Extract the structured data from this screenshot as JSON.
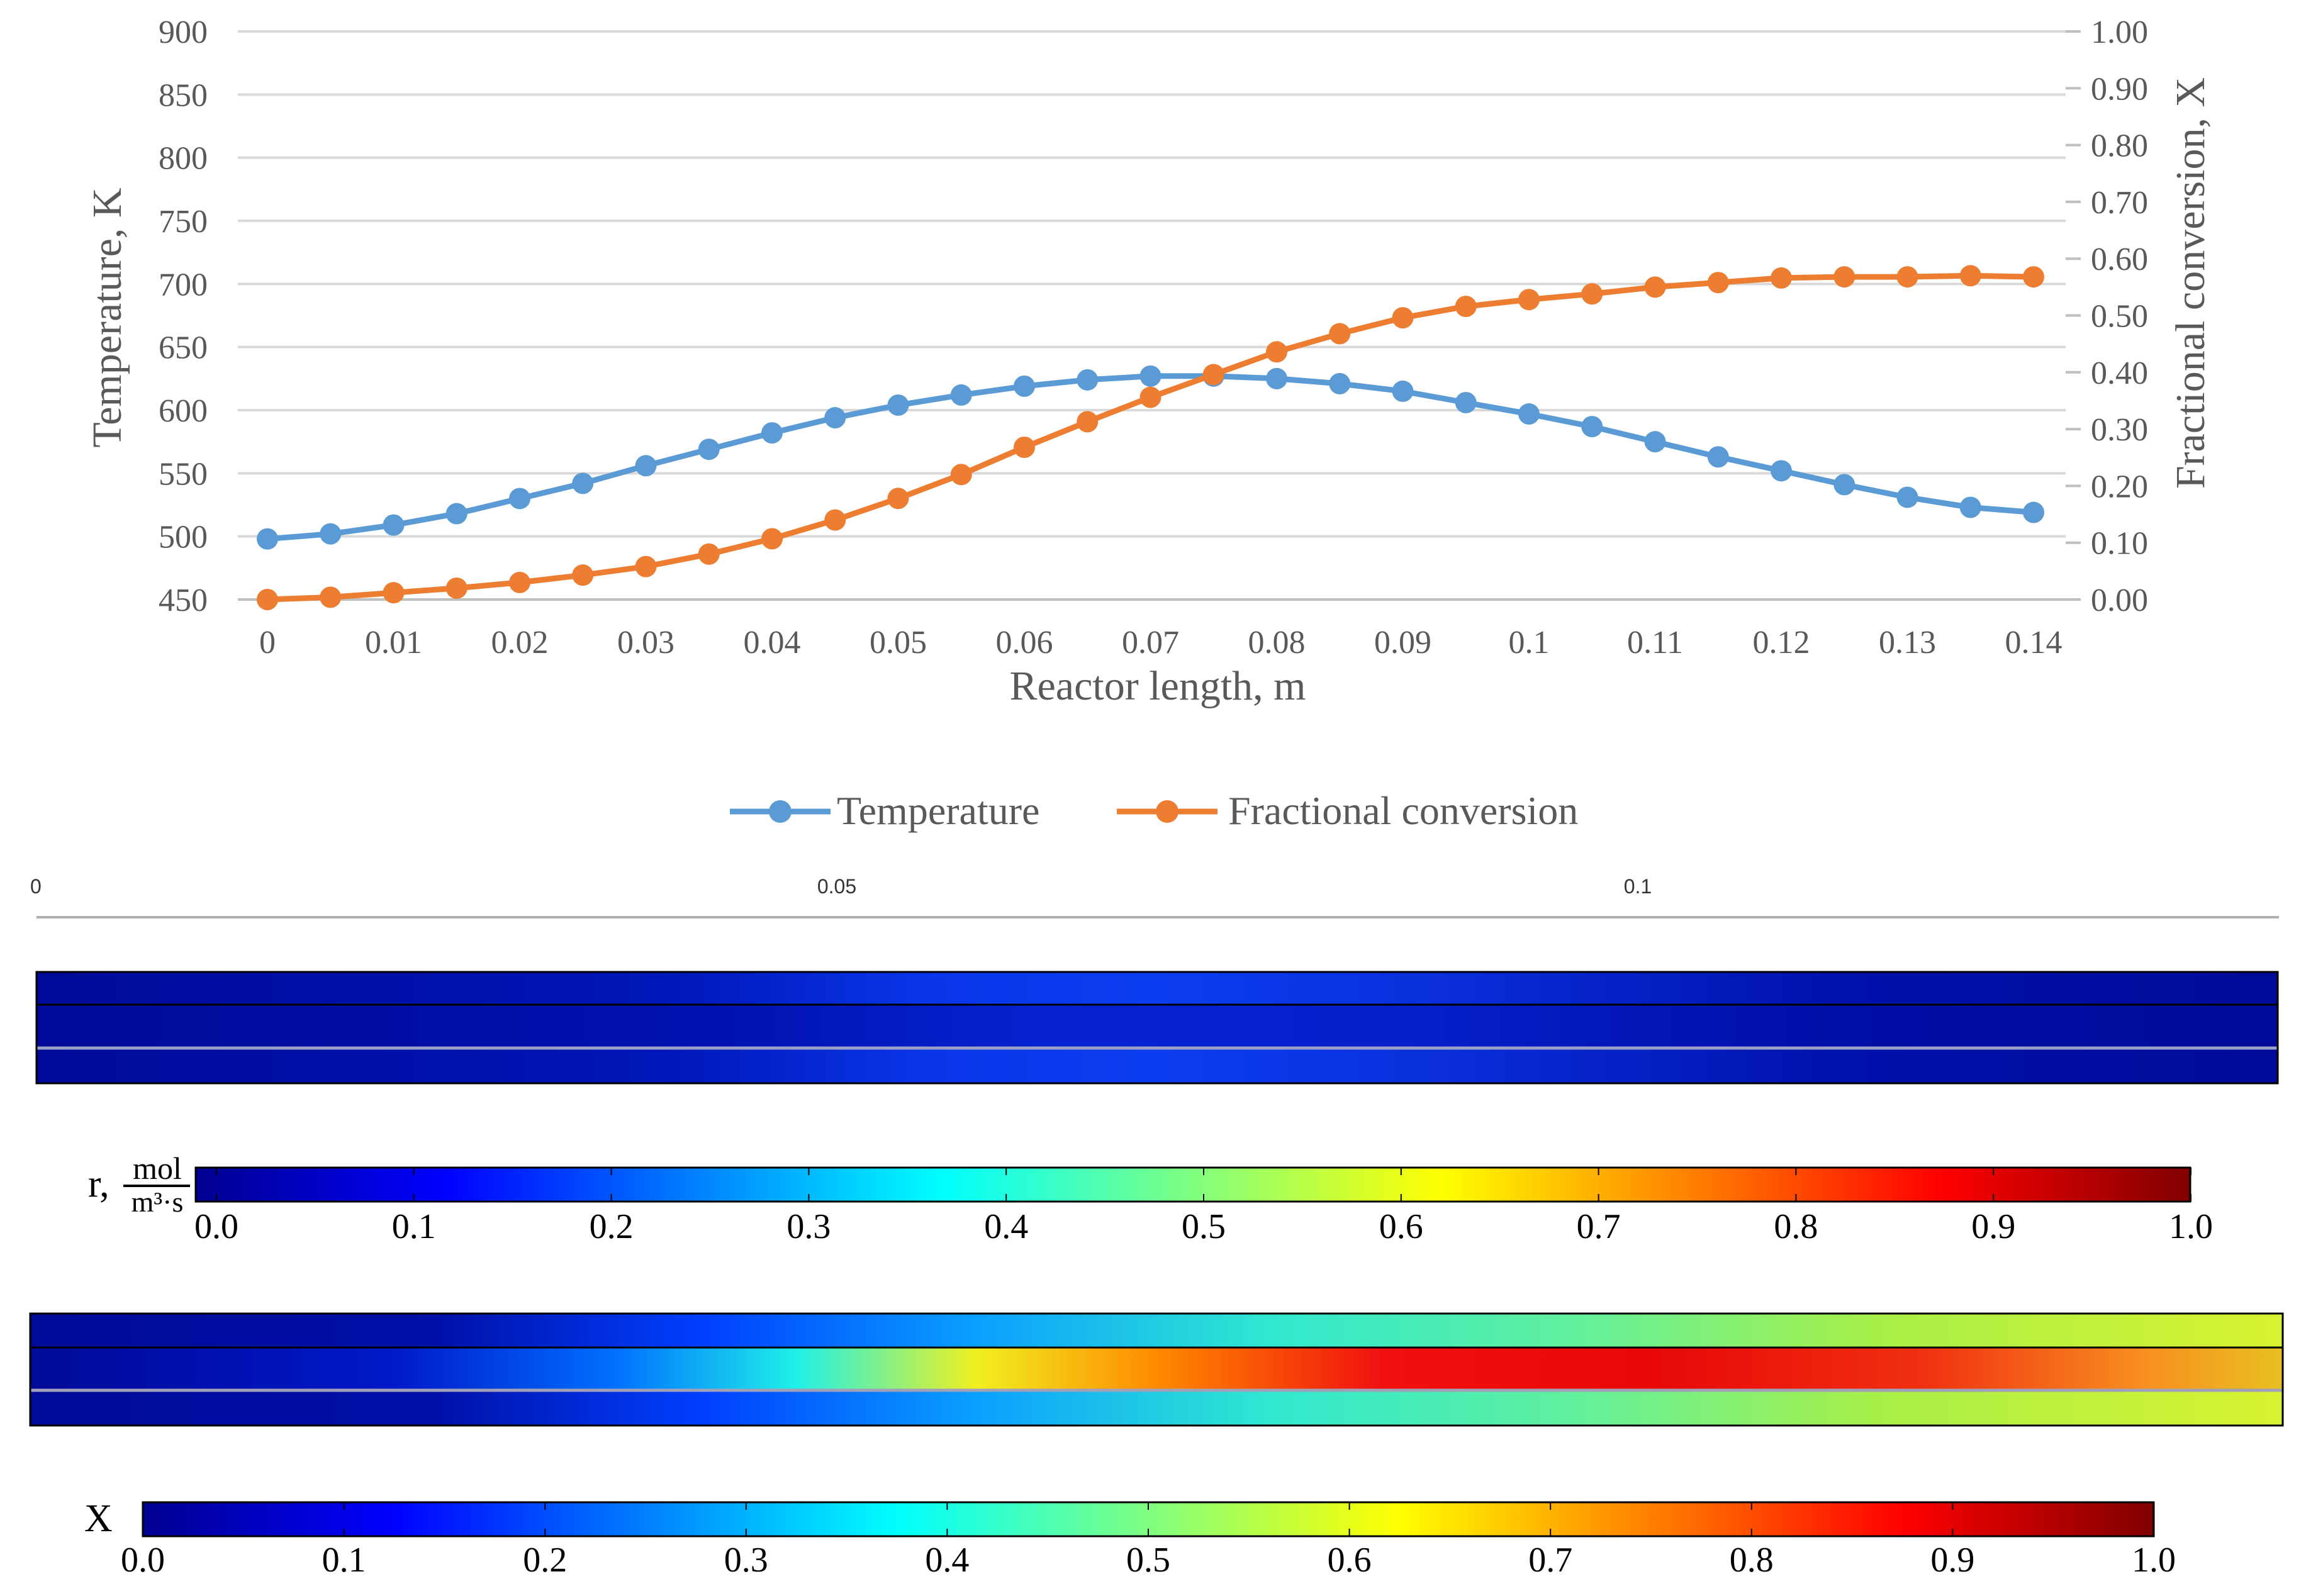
{
  "chart_data": [
    {
      "type": "line",
      "xlabel": "Reactor length, m",
      "ylabel_left": "Temperature, K",
      "ylabel_right": "Fractional conversion, X",
      "x_ticks": [
        "0",
        "0.01",
        "0.02",
        "0.03",
        "0.04",
        "0.05",
        "0.06",
        "0.07",
        "0.08",
        "0.09",
        "0.1",
        "0.11",
        "0.12",
        "0.13",
        "0.14"
      ],
      "ylim_left": [
        450,
        900
      ],
      "y_ticks_left": [
        "450",
        "500",
        "550",
        "600",
        "650",
        "700",
        "750",
        "800",
        "850",
        "900"
      ],
      "ylim_right": [
        0,
        1
      ],
      "y_ticks_right": [
        "0.00",
        "0.10",
        "0.20",
        "0.30",
        "0.40",
        "0.50",
        "0.60",
        "0.70",
        "0.80",
        "0.90",
        "1.00"
      ],
      "grid": true,
      "legend_position": "bottom",
      "x": [
        0,
        0.005,
        0.01,
        0.015,
        0.02,
        0.025,
        0.03,
        0.035,
        0.04,
        0.045,
        0.05,
        0.055,
        0.06,
        0.065,
        0.07,
        0.075,
        0.08,
        0.085,
        0.09,
        0.095,
        0.1,
        0.105,
        0.11,
        0.115,
        0.12,
        0.125,
        0.13,
        0.135,
        0.14
      ],
      "series": [
        {
          "name": "Temperature",
          "axis": "left",
          "color": "#5b9bd5",
          "values": [
            498,
            502,
            509,
            518,
            530,
            542,
            556,
            569,
            582,
            594,
            604,
            612,
            619,
            624,
            627,
            627,
            625,
            621,
            615,
            606,
            597,
            587,
            575,
            563,
            552,
            541,
            531,
            523,
            519
          ]
        },
        {
          "name": "Fractional conversion",
          "axis": "right",
          "color": "#ed7d31",
          "values": [
            0.0,
            0.004,
            0.012,
            0.02,
            0.03,
            0.043,
            0.058,
            0.08,
            0.107,
            0.14,
            0.178,
            0.22,
            0.268,
            0.313,
            0.356,
            0.396,
            0.436,
            0.468,
            0.496,
            0.516,
            0.528,
            0.538,
            0.55,
            0.558,
            0.566,
            0.568,
            0.568,
            0.57,
            0.568
          ]
        }
      ]
    },
    {
      "type": "heatmap",
      "name": "rate field",
      "axis_ticks": [
        "0",
        "0.05",
        "0.1"
      ],
      "colorbar_label": "r, mol/m³·s",
      "colorbar_label_r": "r,",
      "colorbar_label_num": "mol",
      "colorbar_label_den": "m³·s",
      "colorbar_range": [
        0,
        1
      ],
      "colorbar_ticks": [
        "0.0",
        "0.1",
        "0.2",
        "0.3",
        "0.4",
        "0.5",
        "0.6",
        "0.7",
        "0.8",
        "0.9",
        "1.0"
      ]
    },
    {
      "type": "heatmap",
      "name": "conversion field",
      "colorbar_label": "X",
      "colorbar_range": [
        0,
        1
      ],
      "colorbar_ticks": [
        "0.0",
        "0.1",
        "0.2",
        "0.3",
        "0.4",
        "0.5",
        "0.6",
        "0.7",
        "0.8",
        "0.9",
        "1.0"
      ]
    }
  ],
  "legend": {
    "items": [
      {
        "label": "Temperature",
        "color": "#5b9bd5"
      },
      {
        "label": "Fractional conversion",
        "color": "#ed7d31"
      }
    ]
  },
  "colors": {
    "grid": "#d9d9d9",
    "axis": "#bfbfbf",
    "text": "#595959"
  }
}
